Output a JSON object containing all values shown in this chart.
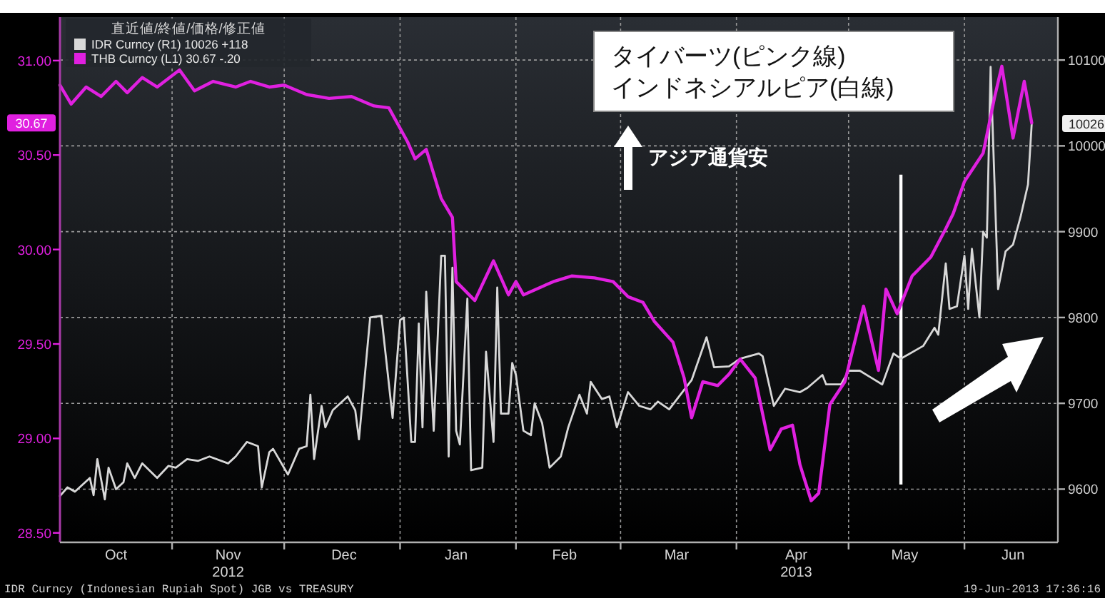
{
  "chart_data": {
    "type": "line",
    "legend_title": "直近値/終値/価格/修正値",
    "legend": "top left",
    "grid": true,
    "xlim": [
      "2012-10-02",
      "2013-06-26"
    ],
    "xticks": [
      {
        "value": "2012-10-17",
        "label": "Oct"
      },
      {
        "value": "2012-11-01",
        "label": null
      },
      {
        "value": "2012-11-16",
        "label": "Nov\n2012"
      },
      {
        "value": "2012-12-01",
        "label": null
      },
      {
        "value": "2012-12-17",
        "label": "Dec"
      },
      {
        "value": "2013-01-01",
        "label": null
      },
      {
        "value": "2013-01-16",
        "label": "Jan"
      },
      {
        "value": "2013-02-01",
        "label": null
      },
      {
        "value": "2013-02-14",
        "label": "Feb"
      },
      {
        "value": "2013-03-01",
        "label": null
      },
      {
        "value": "2013-03-16",
        "label": "Mar"
      },
      {
        "value": "2013-04-01",
        "label": null
      },
      {
        "value": "2013-04-17",
        "label": "Apr\n2013"
      },
      {
        "value": "2013-05-01",
        "label": null
      },
      {
        "value": "2013-05-16",
        "label": "May"
      },
      {
        "value": "2013-06-01",
        "label": null
      },
      {
        "value": "2013-06-14",
        "label": "Jun"
      }
    ],
    "ylim": [
      28.45,
      31.23
    ],
    "yticks": [
      {
        "value": 28.5,
        "label": "28.50"
      },
      {
        "value": 29,
        "label": "29.00"
      },
      {
        "value": 29.5,
        "label": "29.50"
      },
      {
        "value": 30,
        "label": "30.00"
      },
      {
        "value": 30.5,
        "label": "30.50"
      },
      {
        "value": 31,
        "label": "31.00"
      }
    ],
    "y2lim": [
      9538,
      10150
    ],
    "y2ticks": [
      9600,
      9700,
      9800,
      9900,
      10000,
      10100
    ],
    "ref_lines": [
      {
        "axis": "x",
        "value": "2013-05-15",
        "color": "#ffffff"
      }
    ],
    "annotations": [
      "タイバーツ(ピンク線)\nインドネシアルピア(白線)",
      "アジア通貨安",
      "IDR Curncy (Indonesian Rupiah Spot) JGB vs TREASURY",
      "19-Jun-2013 17:36:16",
      "30.67",
      "10026"
    ],
    "series": [
      {
        "name": "IDR Curncy  (R1) 10026  +118",
        "color": "#d8d8d8",
        "axis": "y2",
        "x": [
          "2012-10-02",
          "2012-10-04",
          "2012-10-06",
          "2012-10-10",
          "2012-10-11",
          "2012-10-12",
          "2012-10-14",
          "2012-10-15",
          "2012-10-17",
          "2012-10-19",
          "2012-10-20",
          "2012-10-22",
          "2012-10-24",
          "2012-10-28",
          "2012-10-31",
          "2012-11-02",
          "2012-11-05",
          "2012-11-08",
          "2012-11-11",
          "2012-11-16",
          "2012-11-18",
          "2012-11-21",
          "2012-11-24",
          "2012-11-25",
          "2012-11-27",
          "2012-11-28",
          "2012-12-02",
          "2012-12-05",
          "2012-12-07",
          "2012-12-08",
          "2012-12-09",
          "2012-12-11",
          "2012-12-12",
          "2012-12-14",
          "2012-12-18",
          "2012-12-20",
          "2012-12-21",
          "2012-12-24",
          "2012-12-27",
          "2012-12-30",
          "2013-01-01",
          "2013-01-02",
          "2013-01-04",
          "2013-01-05",
          "2013-01-06",
          "2013-01-07",
          "2013-01-08",
          "2013-01-10",
          "2013-01-12",
          "2013-01-13",
          "2013-01-14",
          "2013-01-15",
          "2013-01-16",
          "2013-01-17",
          "2013-01-19",
          "2013-01-20",
          "2013-01-23",
          "2013-01-24",
          "2013-01-26",
          "2013-01-27",
          "2013-01-28",
          "2013-01-30",
          "2013-01-31",
          "2013-02-01",
          "2013-02-03",
          "2013-02-05",
          "2013-02-06",
          "2013-02-08",
          "2013-02-10",
          "2013-02-13",
          "2013-02-15",
          "2013-02-18",
          "2013-02-20",
          "2013-02-21",
          "2013-02-24",
          "2013-02-26",
          "2013-02-28",
          "2013-03-03",
          "2013-03-06",
          "2013-03-09",
          "2013-03-11",
          "2013-03-14",
          "2013-03-20",
          "2013-03-24",
          "2013-03-26",
          "2013-03-30",
          "2013-04-02",
          "2013-04-07",
          "2013-04-08",
          "2013-04-11",
          "2013-04-14",
          "2013-04-18",
          "2013-04-20",
          "2013-04-24",
          "2013-04-25",
          "2013-04-29",
          "2013-05-01",
          "2013-05-04",
          "2013-05-07",
          "2013-05-10",
          "2013-05-13",
          "2013-05-15",
          "2013-05-21",
          "2013-05-24",
          "2013-05-25",
          "2013-05-27",
          "2013-05-28",
          "2013-05-30",
          "2013-06-01",
          "2013-06-02",
          "2013-06-03",
          "2013-06-05",
          "2013-06-06",
          "2013-06-07",
          "2013-06-08",
          "2013-06-10",
          "2013-06-12",
          "2013-06-14",
          "2013-06-16",
          "2013-06-18",
          "2013-06-19"
        ],
        "values": [
          9592,
          9602,
          9597,
          9613,
          9593,
          9635,
          9588,
          9625,
          9600,
          9608,
          9630,
          9613,
          9630,
          9613,
          9627,
          9625,
          9635,
          9633,
          9638,
          9630,
          9638,
          9655,
          9650,
          9602,
          9643,
          9647,
          9617,
          9647,
          9650,
          9710,
          9635,
          9697,
          9672,
          9692,
          9708,
          9692,
          9658,
          9800,
          9802,
          9683,
          9797,
          9800,
          9655,
          9655,
          9793,
          9672,
          9830,
          9668,
          9872,
          9872,
          9638,
          9858,
          9668,
          9652,
          9822,
          9622,
          9625,
          9760,
          9655,
          9835,
          9688,
          9688,
          9747,
          9733,
          9668,
          9663,
          9700,
          9677,
          9625,
          9638,
          9672,
          9710,
          9688,
          9725,
          9705,
          9708,
          9672,
          9713,
          9697,
          9693,
          9702,
          9693,
          9727,
          9777,
          9742,
          9743,
          9752,
          9758,
          9755,
          9697,
          9717,
          9713,
          9718,
          9733,
          9722,
          9722,
          9738,
          9738,
          9730,
          9722,
          9758,
          9752,
          9767,
          9788,
          9780,
          9863,
          9810,
          9813,
          9872,
          9810,
          9880,
          9800,
          9900,
          9893,
          10092,
          9833,
          9877,
          9885,
          9917,
          9955,
          10026
        ]
      },
      {
        "name": "THB Curncy  (L1) 30.67   -.20",
        "color": "#e020e0",
        "x": [
          "2012-10-02",
          "2012-10-05",
          "2012-10-09",
          "2012-10-13",
          "2012-10-17",
          "2012-10-20",
          "2012-10-24",
          "2012-10-28",
          "2012-11-03",
          "2012-11-07",
          "2012-11-12",
          "2012-11-18",
          "2012-11-22",
          "2012-11-27",
          "2012-12-01",
          "2012-12-07",
          "2012-12-13",
          "2012-12-19",
          "2012-12-25",
          "2012-12-29",
          "2013-01-03",
          "2013-01-05",
          "2013-01-08",
          "2013-01-12",
          "2013-01-15",
          "2013-01-16",
          "2013-01-21",
          "2013-01-26",
          "2013-01-30",
          "2013-02-01",
          "2013-02-03",
          "2013-02-11",
          "2013-02-16",
          "2013-02-22",
          "2013-02-27",
          "2013-03-03",
          "2013-03-07",
          "2013-03-10",
          "2013-03-15",
          "2013-03-18",
          "2013-03-20",
          "2013-03-23",
          "2013-03-27",
          "2013-03-30",
          "2013-04-02",
          "2013-04-06",
          "2013-04-10",
          "2013-04-13",
          "2013-04-16",
          "2013-04-18",
          "2013-04-21",
          "2013-04-23",
          "2013-04-26",
          "2013-04-30",
          "2013-05-05",
          "2013-05-09",
          "2013-05-11",
          "2013-05-14",
          "2013-05-18",
          "2013-05-23",
          "2013-05-27",
          "2013-05-29",
          "2013-06-01",
          "2013-06-04",
          "2013-06-06",
          "2013-06-09",
          "2013-06-11",
          "2013-06-14",
          "2013-06-17",
          "2013-06-19"
        ],
        "values": [
          30.87,
          30.77,
          30.86,
          30.81,
          30.89,
          30.83,
          30.91,
          30.86,
          30.95,
          30.84,
          30.89,
          30.86,
          30.89,
          30.86,
          30.87,
          30.82,
          30.8,
          30.81,
          30.76,
          30.75,
          30.57,
          30.48,
          30.53,
          30.27,
          30.17,
          29.83,
          29.73,
          29.94,
          29.76,
          29.83,
          29.76,
          29.83,
          29.86,
          29.85,
          29.83,
          29.75,
          29.72,
          29.62,
          29.51,
          29.32,
          29.11,
          29.3,
          29.28,
          29.34,
          29.42,
          29.32,
          28.94,
          29.05,
          29.07,
          28.86,
          28.67,
          28.71,
          29.18,
          29.3,
          29.7,
          29.36,
          29.79,
          29.66,
          29.86,
          29.96,
          30.11,
          30.19,
          30.36,
          30.45,
          30.51,
          30.8,
          30.97,
          30.59,
          30.89,
          30.67
        ]
      }
    ]
  }
}
